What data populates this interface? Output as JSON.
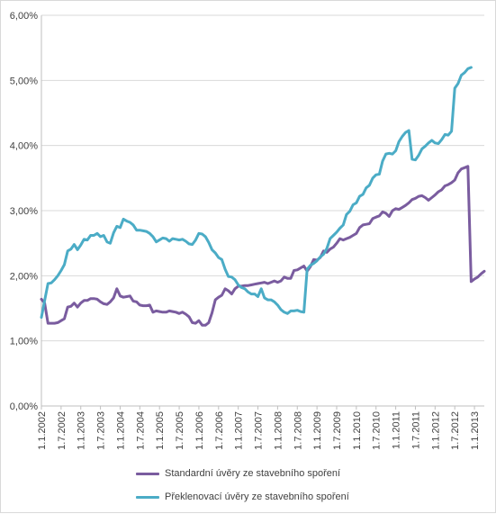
{
  "chart_data": {
    "type": "line",
    "title": "",
    "xlabel": "",
    "ylabel": "",
    "ylim": [
      0,
      6
    ],
    "y_ticks": [
      "0,00%",
      "1,00%",
      "2,00%",
      "3,00%",
      "4,00%",
      "5,00%",
      "6,00%"
    ],
    "x_tick_labels": [
      "1.1.2002",
      "1.7.2002",
      "1.1.2003",
      "1.7.2003",
      "1.1.2004",
      "1.7.2004",
      "1.1.2005",
      "1.7.2005",
      "1.1.2006",
      "1.7.2006",
      "1.1.2007",
      "1.7.2007",
      "1.1.2008",
      "1.7.2008",
      "1.1.2009",
      "1.7.2009",
      "1.1.2010",
      "1.7.2010",
      "1.1.2011",
      "1.7.2011",
      "1.1.2012",
      "1.7.2012",
      "1.1.2013"
    ],
    "grid": "horizontal",
    "legend_position": "bottom",
    "series": [
      {
        "name": "Standardní úvěry ze stavebního spoření",
        "color": "#7a5c9f",
        "points": [
          [
            "2002-01",
            1.64
          ],
          [
            "2002-02",
            1.58
          ],
          [
            "2002-03",
            1.27
          ],
          [
            "2002-04",
            1.27
          ],
          [
            "2002-05",
            1.27
          ],
          [
            "2002-06",
            1.28
          ],
          [
            "2002-07",
            1.31
          ],
          [
            "2002-08",
            1.34
          ],
          [
            "2002-09",
            1.52
          ],
          [
            "2002-10",
            1.53
          ],
          [
            "2002-11",
            1.58
          ],
          [
            "2002-12",
            1.52
          ],
          [
            "2003-01",
            1.58
          ],
          [
            "2003-02",
            1.62
          ],
          [
            "2003-03",
            1.62
          ],
          [
            "2003-04",
            1.65
          ],
          [
            "2003-05",
            1.65
          ],
          [
            "2003-06",
            1.64
          ],
          [
            "2003-07",
            1.6
          ],
          [
            "2003-08",
            1.57
          ],
          [
            "2003-09",
            1.56
          ],
          [
            "2003-10",
            1.6
          ],
          [
            "2003-11",
            1.66
          ],
          [
            "2003-12",
            1.8
          ],
          [
            "2004-01",
            1.69
          ],
          [
            "2004-02",
            1.67
          ],
          [
            "2004-03",
            1.68
          ],
          [
            "2004-04",
            1.69
          ],
          [
            "2004-05",
            1.61
          ],
          [
            "2004-06",
            1.6
          ],
          [
            "2004-07",
            1.55
          ],
          [
            "2004-08",
            1.54
          ],
          [
            "2004-09",
            1.54
          ],
          [
            "2004-10",
            1.55
          ],
          [
            "2004-11",
            1.44
          ],
          [
            "2004-12",
            1.46
          ],
          [
            "2005-01",
            1.45
          ],
          [
            "2005-02",
            1.44
          ],
          [
            "2005-03",
            1.44
          ],
          [
            "2005-04",
            1.46
          ],
          [
            "2005-05",
            1.45
          ],
          [
            "2005-06",
            1.44
          ],
          [
            "2005-07",
            1.42
          ],
          [
            "2005-08",
            1.44
          ],
          [
            "2005-09",
            1.41
          ],
          [
            "2005-10",
            1.37
          ],
          [
            "2005-11",
            1.28
          ],
          [
            "2005-12",
            1.27
          ],
          [
            "2006-01",
            1.31
          ],
          [
            "2006-02",
            1.24
          ],
          [
            "2006-03",
            1.24
          ],
          [
            "2006-04",
            1.28
          ],
          [
            "2006-05",
            1.43
          ],
          [
            "2006-06",
            1.63
          ],
          [
            "2006-07",
            1.67
          ],
          [
            "2006-08",
            1.7
          ],
          [
            "2006-09",
            1.8
          ],
          [
            "2006-10",
            1.77
          ],
          [
            "2006-11",
            1.72
          ],
          [
            "2006-12",
            1.8
          ],
          [
            "2007-01",
            1.84
          ],
          [
            "2007-02",
            1.84
          ],
          [
            "2007-03",
            1.85
          ],
          [
            "2007-04",
            1.85
          ],
          [
            "2007-05",
            1.86
          ],
          [
            "2007-06",
            1.87
          ],
          [
            "2007-07",
            1.88
          ],
          [
            "2007-08",
            1.89
          ],
          [
            "2007-09",
            1.9
          ],
          [
            "2007-10",
            1.88
          ],
          [
            "2007-11",
            1.9
          ],
          [
            "2007-12",
            1.92
          ],
          [
            "2008-01",
            1.9
          ],
          [
            "2008-02",
            1.92
          ],
          [
            "2008-03",
            1.98
          ],
          [
            "2008-04",
            1.96
          ],
          [
            "2008-05",
            1.96
          ],
          [
            "2008-06",
            2.08
          ],
          [
            "2008-07",
            2.09
          ],
          [
            "2008-08",
            2.12
          ],
          [
            "2008-09",
            2.15
          ],
          [
            "2008-10",
            2.07
          ],
          [
            "2008-11",
            2.14
          ],
          [
            "2008-12",
            2.25
          ],
          [
            "2009-01",
            2.24
          ],
          [
            "2009-02",
            2.28
          ],
          [
            "2009-03",
            2.38
          ],
          [
            "2009-04",
            2.36
          ],
          [
            "2009-05",
            2.41
          ],
          [
            "2009-06",
            2.44
          ],
          [
            "2009-07",
            2.5
          ],
          [
            "2009-08",
            2.57
          ],
          [
            "2009-09",
            2.55
          ],
          [
            "2009-10",
            2.57
          ],
          [
            "2009-11",
            2.59
          ],
          [
            "2009-12",
            2.62
          ],
          [
            "2010-01",
            2.65
          ],
          [
            "2010-02",
            2.74
          ],
          [
            "2010-03",
            2.78
          ],
          [
            "2010-04",
            2.79
          ],
          [
            "2010-05",
            2.8
          ],
          [
            "2010-06",
            2.88
          ],
          [
            "2010-07",
            2.9
          ],
          [
            "2010-08",
            2.92
          ],
          [
            "2010-09",
            2.98
          ],
          [
            "2010-10",
            2.96
          ],
          [
            "2010-11",
            2.91
          ],
          [
            "2010-12",
            3.0
          ],
          [
            "2011-01",
            3.03
          ],
          [
            "2011-02",
            3.02
          ],
          [
            "2011-03",
            3.05
          ],
          [
            "2011-04",
            3.08
          ],
          [
            "2011-05",
            3.12
          ],
          [
            "2011-06",
            3.17
          ],
          [
            "2011-07",
            3.19
          ],
          [
            "2011-08",
            3.22
          ],
          [
            "2011-09",
            3.23
          ],
          [
            "2011-10",
            3.2
          ],
          [
            "2011-11",
            3.16
          ],
          [
            "2011-12",
            3.2
          ],
          [
            "2012-01",
            3.24
          ],
          [
            "2012-02",
            3.29
          ],
          [
            "2012-03",
            3.32
          ],
          [
            "2012-04",
            3.38
          ],
          [
            "2012-05",
            3.4
          ],
          [
            "2012-06",
            3.43
          ],
          [
            "2012-07",
            3.47
          ],
          [
            "2012-08",
            3.58
          ],
          [
            "2012-09",
            3.64
          ],
          [
            "2012-10",
            3.66
          ],
          [
            "2012-11",
            3.68
          ],
          [
            "2012-12",
            1.91
          ],
          [
            "2013-01",
            1.95
          ],
          [
            "2013-02",
            1.98
          ],
          [
            "2013-03",
            2.03
          ],
          [
            "2013-04",
            2.07
          ]
        ]
      },
      {
        "name": "Překlenovací úvěry ze stavebního spoření",
        "color": "#4bacc6",
        "points": [
          [
            "2002-01",
            1.36
          ],
          [
            "2002-02",
            1.62
          ],
          [
            "2002-03",
            1.88
          ],
          [
            "2002-04",
            1.89
          ],
          [
            "2002-05",
            1.94
          ],
          [
            "2002-06",
            2.0
          ],
          [
            "2002-07",
            2.08
          ],
          [
            "2002-08",
            2.17
          ],
          [
            "2002-09",
            2.38
          ],
          [
            "2002-10",
            2.41
          ],
          [
            "2002-11",
            2.48
          ],
          [
            "2002-12",
            2.4
          ],
          [
            "2003-01",
            2.47
          ],
          [
            "2003-02",
            2.56
          ],
          [
            "2003-03",
            2.55
          ],
          [
            "2003-04",
            2.62
          ],
          [
            "2003-05",
            2.62
          ],
          [
            "2003-06",
            2.65
          ],
          [
            "2003-07",
            2.6
          ],
          [
            "2003-08",
            2.62
          ],
          [
            "2003-09",
            2.52
          ],
          [
            "2003-10",
            2.5
          ],
          [
            "2003-11",
            2.66
          ],
          [
            "2003-12",
            2.76
          ],
          [
            "2004-01",
            2.74
          ],
          [
            "2004-02",
            2.87
          ],
          [
            "2004-03",
            2.84
          ],
          [
            "2004-04",
            2.82
          ],
          [
            "2004-05",
            2.78
          ],
          [
            "2004-06",
            2.7
          ],
          [
            "2004-07",
            2.7
          ],
          [
            "2004-08",
            2.69
          ],
          [
            "2004-09",
            2.68
          ],
          [
            "2004-10",
            2.65
          ],
          [
            "2004-11",
            2.6
          ],
          [
            "2004-12",
            2.52
          ],
          [
            "2005-01",
            2.55
          ],
          [
            "2005-02",
            2.58
          ],
          [
            "2005-03",
            2.57
          ],
          [
            "2005-04",
            2.53
          ],
          [
            "2005-05",
            2.57
          ],
          [
            "2005-06",
            2.56
          ],
          [
            "2005-07",
            2.55
          ],
          [
            "2005-08",
            2.56
          ],
          [
            "2005-09",
            2.53
          ],
          [
            "2005-10",
            2.49
          ],
          [
            "2005-11",
            2.48
          ],
          [
            "2005-12",
            2.55
          ],
          [
            "2006-01",
            2.65
          ],
          [
            "2006-02",
            2.64
          ],
          [
            "2006-03",
            2.6
          ],
          [
            "2006-04",
            2.51
          ],
          [
            "2006-05",
            2.4
          ],
          [
            "2006-06",
            2.35
          ],
          [
            "2006-07",
            2.28
          ],
          [
            "2006-08",
            2.25
          ],
          [
            "2006-09",
            2.1
          ],
          [
            "2006-10",
            1.99
          ],
          [
            "2006-11",
            1.98
          ],
          [
            "2006-12",
            1.94
          ],
          [
            "2007-01",
            1.86
          ],
          [
            "2007-02",
            1.82
          ],
          [
            "2007-03",
            1.8
          ],
          [
            "2007-04",
            1.75
          ],
          [
            "2007-05",
            1.72
          ],
          [
            "2007-06",
            1.72
          ],
          [
            "2007-07",
            1.68
          ],
          [
            "2007-08",
            1.8
          ],
          [
            "2007-09",
            1.66
          ],
          [
            "2007-10",
            1.63
          ],
          [
            "2007-11",
            1.63
          ],
          [
            "2007-12",
            1.6
          ],
          [
            "2008-01",
            1.55
          ],
          [
            "2008-02",
            1.48
          ],
          [
            "2008-03",
            1.44
          ],
          [
            "2008-04",
            1.42
          ],
          [
            "2008-05",
            1.46
          ],
          [
            "2008-06",
            1.46
          ],
          [
            "2008-07",
            1.47
          ],
          [
            "2008-08",
            1.45
          ],
          [
            "2008-09",
            1.44
          ],
          [
            "2008-10",
            2.1
          ],
          [
            "2008-11",
            2.16
          ],
          [
            "2008-12",
            2.19
          ],
          [
            "2009-01",
            2.23
          ],
          [
            "2009-02",
            2.29
          ],
          [
            "2009-03",
            2.33
          ],
          [
            "2009-04",
            2.42
          ],
          [
            "2009-05",
            2.57
          ],
          [
            "2009-06",
            2.62
          ],
          [
            "2009-07",
            2.67
          ],
          [
            "2009-08",
            2.73
          ],
          [
            "2009-09",
            2.78
          ],
          [
            "2009-10",
            2.94
          ],
          [
            "2009-11",
            2.99
          ],
          [
            "2009-12",
            3.09
          ],
          [
            "2010-01",
            3.12
          ],
          [
            "2010-02",
            3.22
          ],
          [
            "2010-03",
            3.25
          ],
          [
            "2010-04",
            3.35
          ],
          [
            "2010-05",
            3.39
          ],
          [
            "2010-06",
            3.5
          ],
          [
            "2010-07",
            3.55
          ],
          [
            "2010-08",
            3.56
          ],
          [
            "2010-09",
            3.76
          ],
          [
            "2010-10",
            3.87
          ],
          [
            "2010-11",
            3.88
          ],
          [
            "2010-12",
            3.87
          ],
          [
            "2011-01",
            3.92
          ],
          [
            "2011-02",
            4.06
          ],
          [
            "2011-03",
            4.14
          ],
          [
            "2011-04",
            4.2
          ],
          [
            "2011-05",
            4.23
          ],
          [
            "2011-06",
            3.79
          ],
          [
            "2011-07",
            3.78
          ],
          [
            "2011-08",
            3.85
          ],
          [
            "2011-09",
            3.95
          ],
          [
            "2011-10",
            3.99
          ],
          [
            "2011-11",
            4.04
          ],
          [
            "2011-12",
            4.08
          ],
          [
            "2012-01",
            4.04
          ],
          [
            "2012-02",
            4.03
          ],
          [
            "2012-03",
            4.09
          ],
          [
            "2012-04",
            4.17
          ],
          [
            "2012-05",
            4.16
          ],
          [
            "2012-06",
            4.22
          ],
          [
            "2012-07",
            4.88
          ],
          [
            "2012-08",
            4.95
          ],
          [
            "2012-09",
            5.08
          ],
          [
            "2012-10",
            5.12
          ],
          [
            "2012-11",
            5.18
          ],
          [
            "2012-12",
            5.2
          ]
        ]
      }
    ]
  }
}
